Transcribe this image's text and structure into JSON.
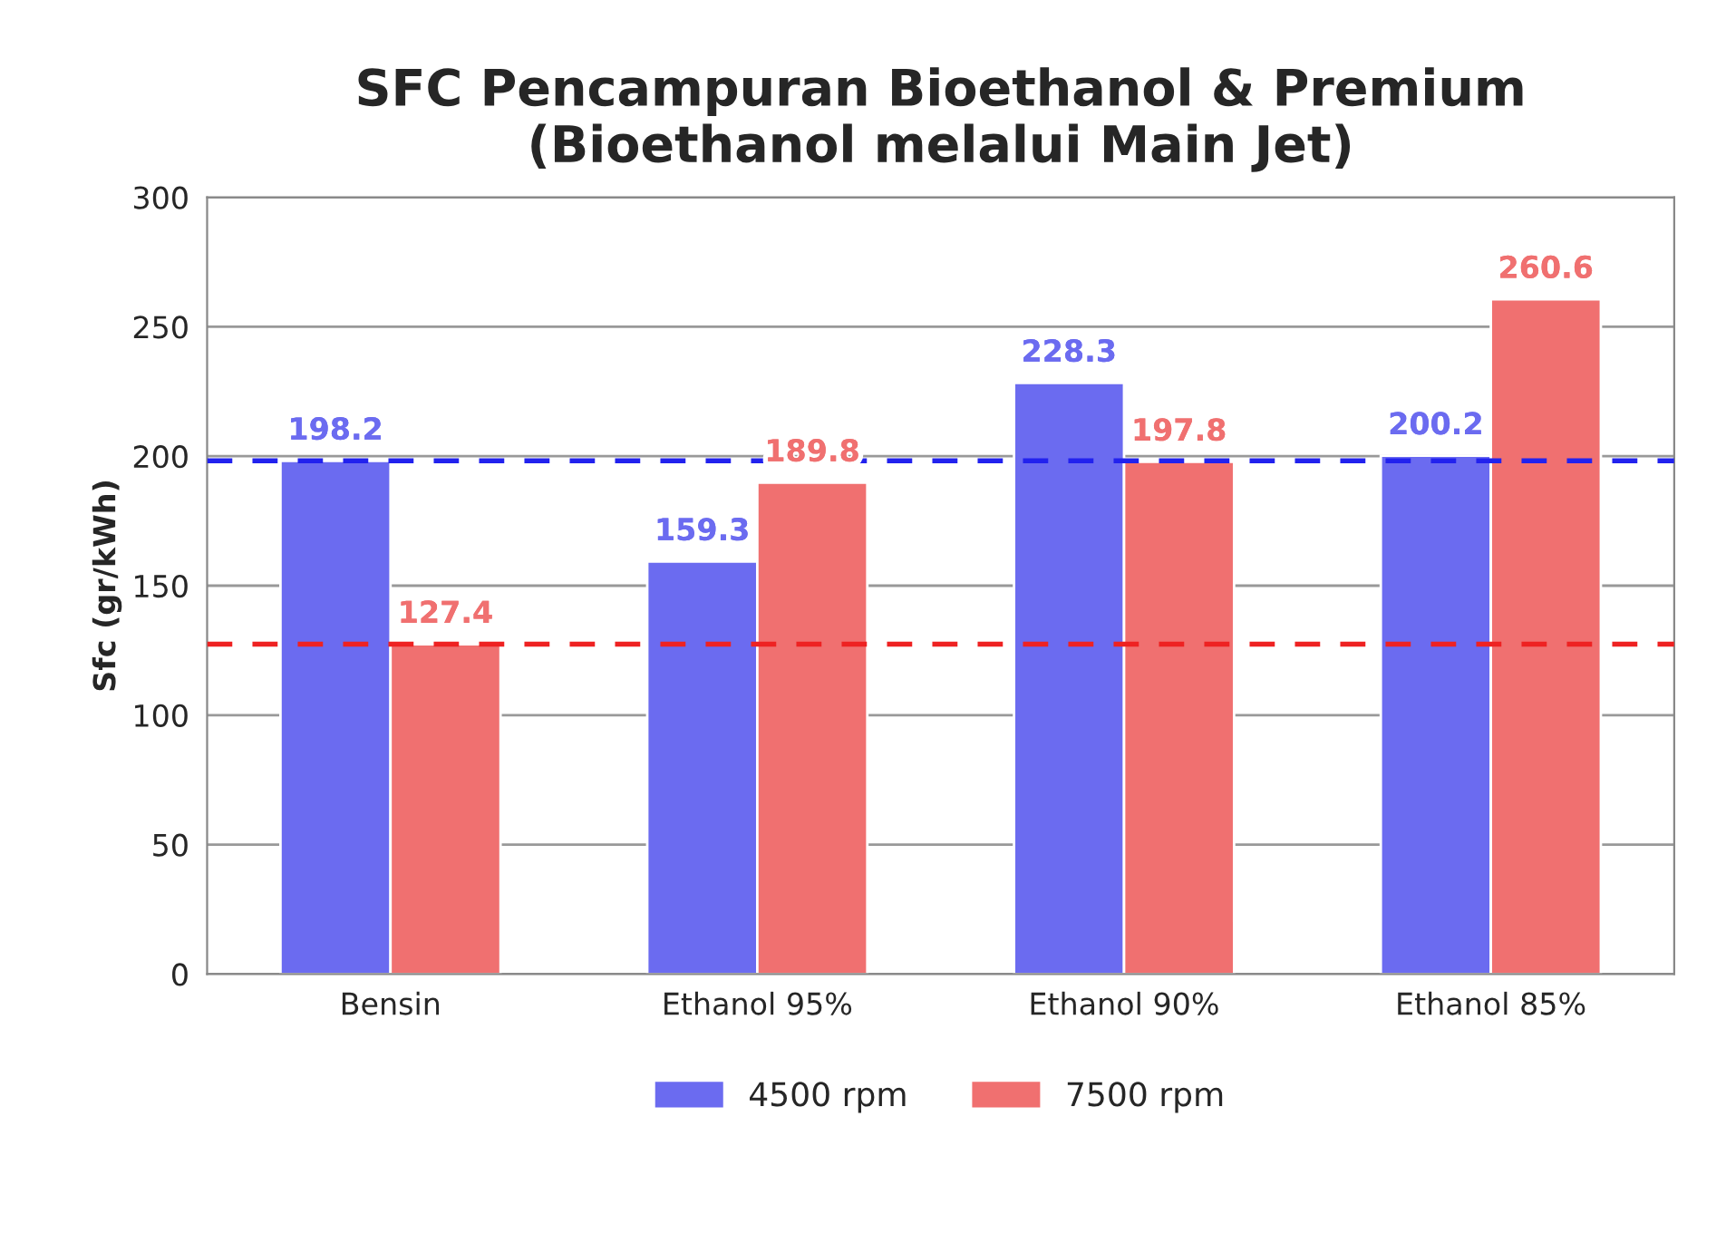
{
  "chart_data": {
    "type": "bar",
    "title": "SFC Pencampuran Bioethanol & Premium\n(Bioethanol melalui Main Jet)",
    "ylabel": "Sfc (gr/kWh)",
    "categories": [
      "Bensin",
      "Ethanol 95%",
      "Ethanol 90%",
      "Ethanol 85%"
    ],
    "series": [
      {
        "name": "4500 rpm",
        "color": "#6b6bf0",
        "values": [
          198.2,
          159.3,
          228.3,
          200.2
        ]
      },
      {
        "name": "7500 rpm",
        "color": "#f07070",
        "values": [
          127.4,
          189.8,
          197.8,
          260.6
        ]
      }
    ],
    "ylim": [
      0,
      300
    ],
    "yticks": [
      0,
      50,
      100,
      150,
      200,
      250,
      300
    ],
    "grid": "y",
    "legend": "bottom",
    "data_labels": true,
    "ref_lines": [
      {
        "axis": "y",
        "value": 198.2,
        "color": "#2222ee",
        "line_style": "dashed"
      },
      {
        "axis": "y",
        "value": 127.4,
        "color": "#ee2222",
        "line_style": "dashed"
      }
    ]
  }
}
